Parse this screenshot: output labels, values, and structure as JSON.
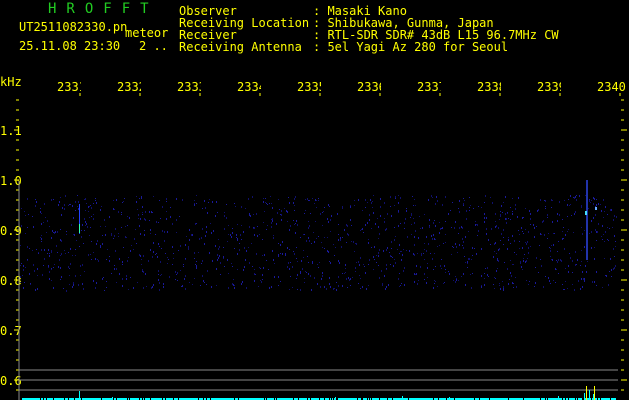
{
  "header": {
    "brand": "HROFFT",
    "filename": "UT2511082330.pn",
    "mode": "meteor",
    "datetime": "25.11.08 23:30",
    "count": "2 ..",
    "info": [
      {
        "label": "Observer",
        "value": ": Masaki Kano"
      },
      {
        "label": "Receiving Location",
        "value": ": Shibukawa, Gunma, Japan"
      },
      {
        "label": "Receiver",
        "value": ": RTL-SDR SDR# 43dB L15 96.7MHz CW"
      },
      {
        "label": "Receiving Antenna",
        "value": ": 5el Yagi Az 280 for Seoul"
      }
    ]
  },
  "axes": {
    "y_unit": "kHz",
    "y_ticks": [
      "1.1",
      "1.0",
      "0.9",
      "0.8",
      "0.7",
      "0.6"
    ],
    "x_ticks": [
      "2331",
      "2332",
      "2333",
      "2334",
      "2335",
      "2336",
      "2337",
      "2338",
      "2339",
      "2340"
    ]
  },
  "colors": {
    "text": "#ffff00",
    "brand": "#22cc22",
    "grid": "#888888",
    "signal": "#00ffff",
    "noise": "#1a1a9a"
  }
}
